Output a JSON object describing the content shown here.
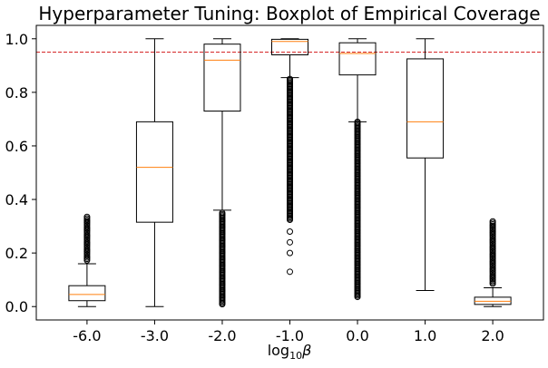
{
  "chart_data": {
    "type": "boxplot",
    "title": "Hyperparameter Tuning: Boxplot of Empirical Coverage",
    "xlabel_main": "log",
    "xlabel_sub": "10",
    "xlabel_symbol": "β",
    "ylabel": "",
    "ylim": [
      -0.05,
      1.05
    ],
    "yticks": [
      0.0,
      0.2,
      0.4,
      0.6,
      0.8,
      1.0
    ],
    "ytick_labels": [
      "0.0",
      "0.2",
      "0.4",
      "0.6",
      "0.8",
      "1.0"
    ],
    "reference_line": {
      "y": 0.95,
      "color": "#d62728",
      "style": "dashed"
    },
    "box_color": "#000000",
    "median_color": "#ff7f0e",
    "categories": [
      "-6.0",
      "-3.0",
      "-2.0",
      "-1.0",
      "0.0",
      "1.0",
      "2.0"
    ],
    "boxes": [
      {
        "label": "-6.0",
        "whisker_low": 0.0,
        "q1": 0.022,
        "median": 0.045,
        "q3": 0.078,
        "whisker_high": 0.16,
        "outliers_low": [],
        "outliers_high": [
          0.17,
          0.19,
          0.21,
          0.23,
          0.25,
          0.27,
          0.29,
          0.31,
          0.335
        ]
      },
      {
        "label": "-3.0",
        "whisker_low": 0.0,
        "q1": 0.315,
        "median": 0.52,
        "q3": 0.69,
        "whisker_high": 1.0,
        "outliers_low": [],
        "outliers_high": []
      },
      {
        "label": "-2.0",
        "whisker_low": 0.36,
        "q1": 0.73,
        "median": 0.92,
        "q3": 0.98,
        "whisker_high": 1.0,
        "outliers_low": [
          0.005,
          0.02,
          0.05,
          0.1,
          0.15,
          0.2,
          0.25,
          0.3,
          0.35
        ],
        "outliers_high": []
      },
      {
        "label": "-1.0",
        "whisker_low": 0.855,
        "q1": 0.94,
        "median": 0.99,
        "q3": 0.998,
        "whisker_high": 1.0,
        "outliers_low": [
          0.13,
          0.2,
          0.24,
          0.28,
          0.32,
          0.36,
          0.42,
          0.5,
          0.6,
          0.7,
          0.8,
          0.85
        ],
        "outliers_high": []
      },
      {
        "label": "0.0",
        "whisker_low": 0.69,
        "q1": 0.865,
        "median": 0.945,
        "q3": 0.985,
        "whisker_high": 1.0,
        "outliers_low": [
          0.035,
          0.1,
          0.2,
          0.3,
          0.4,
          0.5,
          0.6,
          0.69
        ],
        "outliers_high": []
      },
      {
        "label": "1.0",
        "whisker_low": 0.06,
        "q1": 0.555,
        "median": 0.69,
        "q3": 0.925,
        "whisker_high": 1.0,
        "outliers_low": [],
        "outliers_high": []
      },
      {
        "label": "2.0",
        "whisker_low": 0.0,
        "q1": 0.008,
        "median": 0.02,
        "q3": 0.035,
        "whisker_high": 0.07,
        "outliers_low": [],
        "outliers_high": [
          0.08,
          0.12,
          0.16,
          0.2,
          0.24,
          0.28,
          0.318
        ]
      }
    ]
  }
}
